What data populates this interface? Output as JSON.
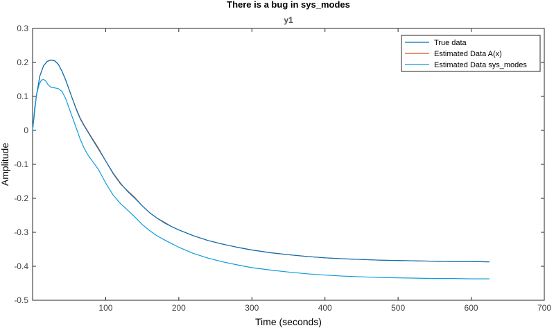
{
  "chart_data": {
    "type": "line",
    "title": "There is a bug in sys_modes",
    "subtitle": "y1",
    "xlabel": "Time (seconds)",
    "ylabel": "Amplitude",
    "xlim": [
      0,
      700
    ],
    "ylim": [
      -0.5,
      0.3
    ],
    "xticks": [
      100,
      200,
      300,
      400,
      500,
      600,
      700
    ],
    "xtick_labels": [
      "100",
      "200",
      "300",
      "400",
      "500",
      "600",
      "700"
    ],
    "yticks": [
      0.3,
      0.2,
      0.1,
      0,
      -0.1,
      -0.2,
      -0.3,
      -0.4,
      -0.5
    ],
    "ytick_labels": [
      "0.3",
      "0.2",
      "0.1",
      "0",
      "-0.1",
      "-0.2",
      "-0.3",
      "-0.4",
      "-0.5"
    ],
    "grid": false,
    "legend_position": "top-right",
    "series": [
      {
        "name": "True data",
        "color": "#0072BD",
        "x": [
          0,
          5,
          10,
          15,
          20,
          25,
          30,
          35,
          40,
          45,
          50,
          55,
          60,
          65,
          70,
          80,
          90,
          100,
          110,
          120,
          130,
          140,
          150,
          160,
          170,
          180,
          190,
          200,
          220,
          240,
          260,
          280,
          300,
          325,
          350,
          375,
          400,
          425,
          450,
          475,
          500,
          525,
          550,
          575,
          600,
          625
        ],
        "y": [
          0,
          0.1,
          0.16,
          0.19,
          0.203,
          0.207,
          0.205,
          0.195,
          0.175,
          0.15,
          0.12,
          0.09,
          0.06,
          0.035,
          0.015,
          -0.02,
          -0.055,
          -0.09,
          -0.125,
          -0.155,
          -0.18,
          -0.2,
          -0.222,
          -0.242,
          -0.258,
          -0.272,
          -0.283,
          -0.293,
          -0.31,
          -0.324,
          -0.335,
          -0.344,
          -0.352,
          -0.36,
          -0.366,
          -0.371,
          -0.375,
          -0.378,
          -0.38,
          -0.382,
          -0.383,
          -0.384,
          -0.385,
          -0.386,
          -0.386,
          -0.387
        ]
      },
      {
        "name": "Estimated Data A(x)",
        "color": "#D95319",
        "x": [
          0,
          5,
          10,
          15,
          20,
          25,
          30,
          35,
          40,
          45,
          50,
          55,
          60,
          65,
          70,
          80,
          90,
          100,
          110,
          120,
          130,
          140,
          150,
          160,
          170,
          180,
          190,
          200,
          220,
          240,
          260,
          280,
          300,
          325,
          350,
          375,
          400,
          425,
          450,
          475,
          500,
          525,
          550,
          575,
          600,
          625
        ],
        "y": [
          0,
          0.1,
          0.16,
          0.19,
          0.203,
          0.207,
          0.205,
          0.195,
          0.175,
          0.15,
          0.12,
          0.09,
          0.062,
          0.037,
          0.017,
          -0.018,
          -0.052,
          -0.09,
          -0.127,
          -0.157,
          -0.178,
          -0.198,
          -0.222,
          -0.242,
          -0.258,
          -0.27,
          -0.283,
          -0.293,
          -0.31,
          -0.324,
          -0.335,
          -0.344,
          -0.352,
          -0.36,
          -0.366,
          -0.371,
          -0.375,
          -0.378,
          -0.38,
          -0.382,
          -0.383,
          -0.384,
          -0.385,
          -0.386,
          -0.386,
          -0.387
        ]
      },
      {
        "name": "Estimated Data sys_modes",
        "color": "#0E9BD8",
        "x": [
          0,
          3,
          6,
          9,
          12,
          15,
          18,
          21,
          25,
          30,
          35,
          40,
          45,
          50,
          55,
          60,
          65,
          70,
          75,
          80,
          85,
          90,
          95,
          100,
          110,
          120,
          130,
          140,
          150,
          160,
          170,
          180,
          190,
          200,
          220,
          240,
          260,
          280,
          300,
          325,
          350,
          375,
          400,
          425,
          450,
          475,
          500,
          525,
          550,
          575,
          600,
          625
        ],
        "y": [
          0,
          0.07,
          0.11,
          0.135,
          0.148,
          0.15,
          0.145,
          0.135,
          0.127,
          0.125,
          0.123,
          0.115,
          0.095,
          0.065,
          0.035,
          0.005,
          -0.025,
          -0.05,
          -0.07,
          -0.085,
          -0.1,
          -0.115,
          -0.135,
          -0.155,
          -0.19,
          -0.215,
          -0.235,
          -0.255,
          -0.277,
          -0.295,
          -0.31,
          -0.322,
          -0.333,
          -0.344,
          -0.362,
          -0.376,
          -0.387,
          -0.396,
          -0.404,
          -0.411,
          -0.417,
          -0.422,
          -0.426,
          -0.429,
          -0.431,
          -0.433,
          -0.434,
          -0.435,
          -0.436,
          -0.436,
          -0.437,
          -0.437
        ]
      }
    ]
  }
}
